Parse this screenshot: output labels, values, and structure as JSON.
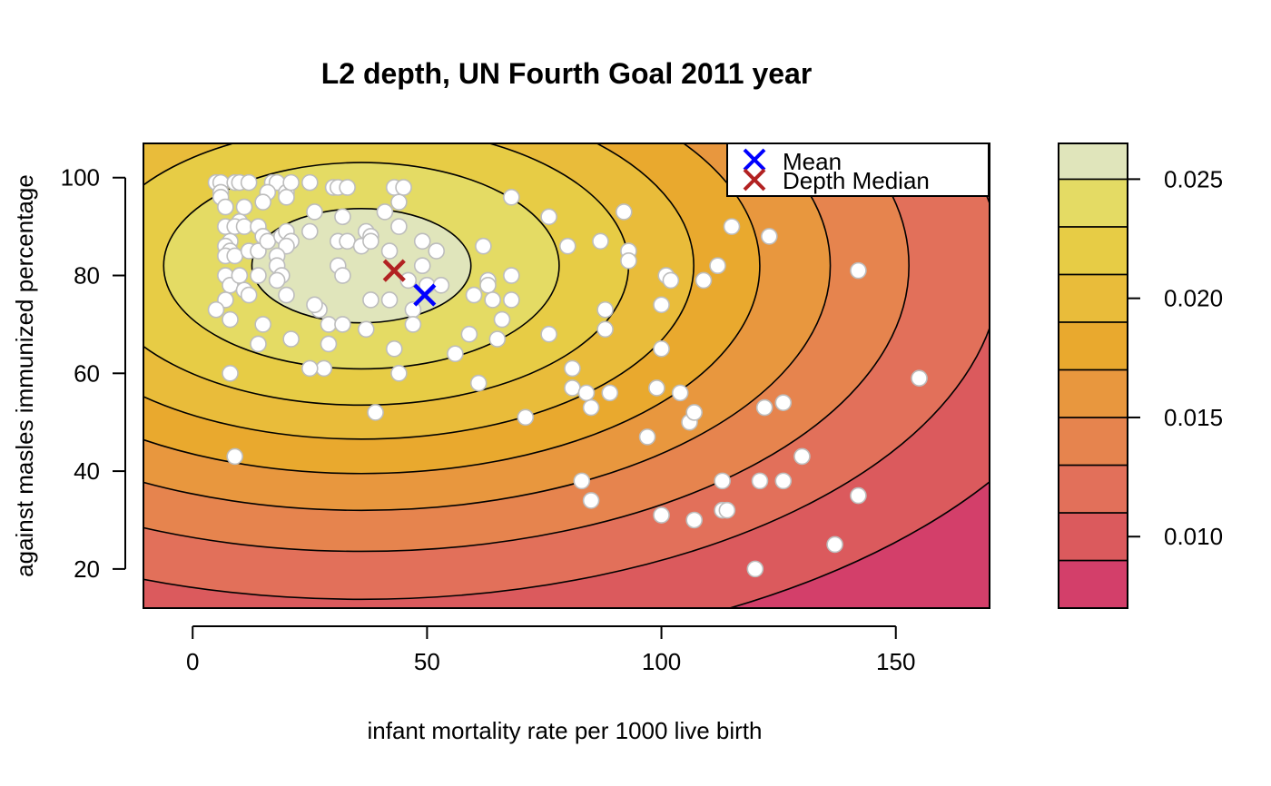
{
  "chart_data": {
    "type": "scatter",
    "title": "L2 depth, UN Fourth Goal 2011 year",
    "xlabel": "infant mortality rate per 1000 live birth",
    "ylabel": "against masles immunized percentage",
    "xlim": [
      -10.5,
      170
    ],
    "ylim": [
      12,
      107
    ],
    "x_ticks": [
      0,
      50,
      100,
      150
    ],
    "y_ticks": [
      20,
      40,
      60,
      80,
      100
    ],
    "grid": false,
    "colorbar": {
      "range": [
        0.007,
        0.0265
      ],
      "ticks": [
        0.01,
        0.015,
        0.02,
        0.025
      ],
      "tick_labels": [
        "0.010",
        "0.015",
        "0.020",
        "0.025"
      ],
      "levels": [
        0.007,
        0.009,
        0.011,
        0.013,
        0.015,
        0.017,
        0.019,
        0.021,
        0.023,
        0.025,
        0.0265
      ],
      "colors": [
        "#d33f6a",
        "#db5a5d",
        "#e2705a",
        "#e6844e",
        "#e8973e",
        "#e9a92e",
        "#e9bc3a",
        "#e7cc45",
        "#e4db64",
        "#e0e5bb"
      ]
    },
    "depth_model": {
      "center": [
        36,
        82
      ],
      "sx": 72,
      "sy": 36,
      "max": 0.026,
      "scale": 0.038,
      "contour_levels": [
        0.009,
        0.011,
        0.013,
        0.015,
        0.017,
        0.019,
        0.021,
        0.023,
        0.025
      ]
    },
    "legend": {
      "position": "top-right",
      "entries": [
        {
          "label": "Mean",
          "marker": "x",
          "color": "#0000ff"
        },
        {
          "label": "Depth Median",
          "marker": "x",
          "color": "#b22222"
        }
      ]
    },
    "mean": {
      "x": 49.5,
      "y": 76
    },
    "depth_median": {
      "x": 43,
      "y": 81
    },
    "points": [
      [
        5,
        99
      ],
      [
        6,
        99
      ],
      [
        6,
        97
      ],
      [
        6,
        96
      ],
      [
        7,
        94
      ],
      [
        7,
        90
      ],
      [
        8,
        87
      ],
      [
        7,
        86
      ],
      [
        8,
        85
      ],
      [
        7,
        84
      ],
      [
        9,
        84
      ],
      [
        7,
        80
      ],
      [
        8,
        78
      ],
      [
        7,
        75
      ],
      [
        8,
        71
      ],
      [
        5,
        73
      ],
      [
        9,
        99
      ],
      [
        10,
        99
      ],
      [
        12,
        99
      ],
      [
        10,
        91
      ],
      [
        11,
        94
      ],
      [
        9,
        90
      ],
      [
        11,
        90
      ],
      [
        12,
        85
      ],
      [
        10,
        80
      ],
      [
        11,
        77
      ],
      [
        12,
        76
      ],
      [
        14,
        90
      ],
      [
        15,
        88
      ],
      [
        14,
        85
      ],
      [
        16,
        87
      ],
      [
        14,
        80
      ],
      [
        15,
        70
      ],
      [
        14,
        66
      ],
      [
        8,
        60
      ],
      [
        9,
        43
      ],
      [
        17,
        99
      ],
      [
        18,
        99
      ],
      [
        16,
        97
      ],
      [
        15,
        95
      ],
      [
        20,
        97
      ],
      [
        20,
        96
      ],
      [
        21,
        99
      ],
      [
        19,
        88
      ],
      [
        20,
        89
      ],
      [
        21,
        87
      ],
      [
        20,
        86
      ],
      [
        18,
        84
      ],
      [
        18,
        82
      ],
      [
        19,
        80
      ],
      [
        18,
        79
      ],
      [
        20,
        76
      ],
      [
        21,
        67
      ],
      [
        25,
        99
      ],
      [
        26,
        93
      ],
      [
        25,
        89
      ],
      [
        27,
        73
      ],
      [
        28,
        61
      ],
      [
        25,
        61
      ],
      [
        29,
        70
      ],
      [
        29,
        66
      ],
      [
        26,
        74
      ],
      [
        30,
        98
      ],
      [
        31,
        98
      ],
      [
        33,
        98
      ],
      [
        32,
        92
      ],
      [
        31,
        87
      ],
      [
        33,
        87
      ],
      [
        31,
        82
      ],
      [
        32,
        80
      ],
      [
        32,
        70
      ],
      [
        36,
        86
      ],
      [
        37,
        89
      ],
      [
        38,
        88
      ],
      [
        38,
        87
      ],
      [
        38,
        75
      ],
      [
        37,
        69
      ],
      [
        41,
        93
      ],
      [
        42,
        85
      ],
      [
        42,
        75
      ],
      [
        43,
        98
      ],
      [
        45,
        98
      ],
      [
        44,
        95
      ],
      [
        44,
        90
      ],
      [
        43,
        65
      ],
      [
        44,
        60
      ],
      [
        39,
        52
      ],
      [
        46,
        79
      ],
      [
        47,
        73
      ],
      [
        47,
        70
      ],
      [
        49,
        87
      ],
      [
        49,
        82
      ],
      [
        50,
        78
      ],
      [
        52,
        85
      ],
      [
        53,
        78
      ],
      [
        56,
        64
      ],
      [
        59,
        68
      ],
      [
        60,
        76
      ],
      [
        61,
        58
      ],
      [
        62,
        86
      ],
      [
        63,
        79
      ],
      [
        63,
        78
      ],
      [
        64,
        75
      ],
      [
        65,
        67
      ],
      [
        66,
        71
      ],
      [
        68,
        80
      ],
      [
        68,
        75
      ],
      [
        68,
        96
      ],
      [
        71,
        51
      ],
      [
        76,
        92
      ],
      [
        76,
        68
      ],
      [
        80,
        86
      ],
      [
        81,
        61
      ],
      [
        81,
        57
      ],
      [
        83,
        38
      ],
      [
        84,
        56
      ],
      [
        85,
        53
      ],
      [
        85,
        34
      ],
      [
        87,
        87
      ],
      [
        88,
        73
      ],
      [
        88,
        69
      ],
      [
        89,
        56
      ],
      [
        92,
        93
      ],
      [
        93,
        85
      ],
      [
        93,
        83
      ],
      [
        97,
        47
      ],
      [
        99,
        57
      ],
      [
        100,
        74
      ],
      [
        100,
        65
      ],
      [
        100,
        31
      ],
      [
        101,
        80
      ],
      [
        102,
        79
      ],
      [
        104,
        56
      ],
      [
        106,
        50
      ],
      [
        107,
        52
      ],
      [
        107,
        30
      ],
      [
        109,
        79
      ],
      [
        112,
        82
      ],
      [
        113,
        38
      ],
      [
        113,
        32
      ],
      [
        114,
        32
      ],
      [
        115,
        90
      ],
      [
        120,
        20
      ],
      [
        121,
        38
      ],
      [
        122,
        53
      ],
      [
        123,
        88
      ],
      [
        126,
        54
      ],
      [
        126,
        38
      ],
      [
        130,
        43
      ],
      [
        137,
        25
      ],
      [
        142,
        81
      ],
      [
        142,
        35
      ],
      [
        155,
        59
      ]
    ]
  }
}
